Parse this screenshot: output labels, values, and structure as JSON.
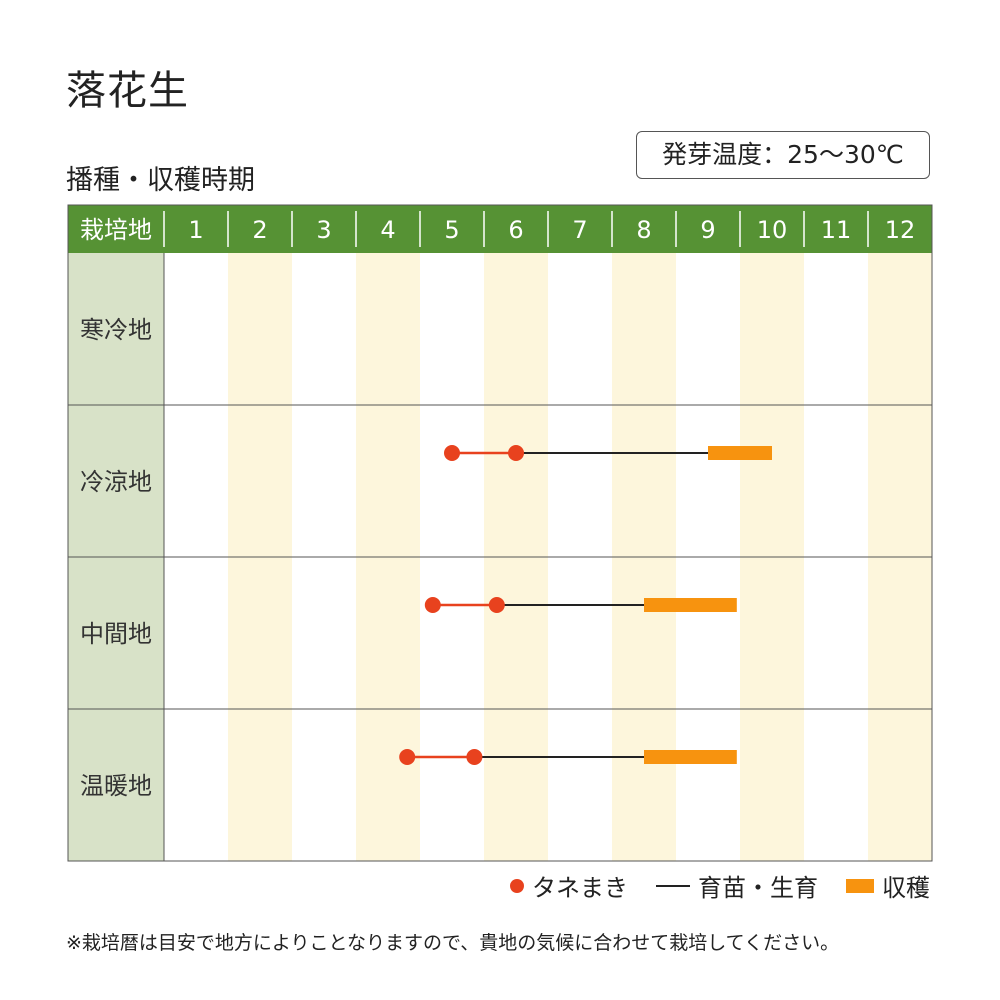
{
  "title": "落花生",
  "subtitle": "播種・収穫時期",
  "germination_temp": "発芽温度：25～30℃",
  "note": "※栽培暦は目安で地方によりことなりますので、貴地の気候に合わせて栽培してください。",
  "colors": {
    "header_green": "#569234",
    "row_label_bg": "#d8e2c8",
    "stripe_cream": "#fdf6dc",
    "sowing_red": "#e8421e",
    "harvest_orange": "#f7930f",
    "growth_line": "#222222"
  },
  "legend": {
    "sowing": "タネまき",
    "growth": "育苗・生育",
    "harvest": "収穫"
  },
  "chart_data": {
    "type": "table",
    "header_label": "栽培地",
    "months": [
      "1",
      "2",
      "3",
      "4",
      "5",
      "6",
      "7",
      "8",
      "9",
      "10",
      "11",
      "12"
    ],
    "rows": [
      {
        "region": "寒冷地",
        "periods": []
      },
      {
        "region": "冷涼地",
        "periods": [
          {
            "kind": "sowing",
            "start": 5.5,
            "end": 6.5
          },
          {
            "kind": "growth",
            "start": 6.5,
            "end": 9.5
          },
          {
            "kind": "harvest",
            "start": 9.5,
            "end": 10.5
          }
        ]
      },
      {
        "region": "中間地",
        "periods": [
          {
            "kind": "sowing",
            "start": 5.2,
            "end": 6.2
          },
          {
            "kind": "growth",
            "start": 6.2,
            "end": 8.5
          },
          {
            "kind": "harvest",
            "start": 8.5,
            "end": 9.95
          }
        ]
      },
      {
        "region": "温暖地",
        "periods": [
          {
            "kind": "sowing",
            "start": 4.8,
            "end": 5.85
          },
          {
            "kind": "growth",
            "start": 5.85,
            "end": 8.5
          },
          {
            "kind": "harvest",
            "start": 8.5,
            "end": 9.95
          }
        ]
      }
    ]
  }
}
